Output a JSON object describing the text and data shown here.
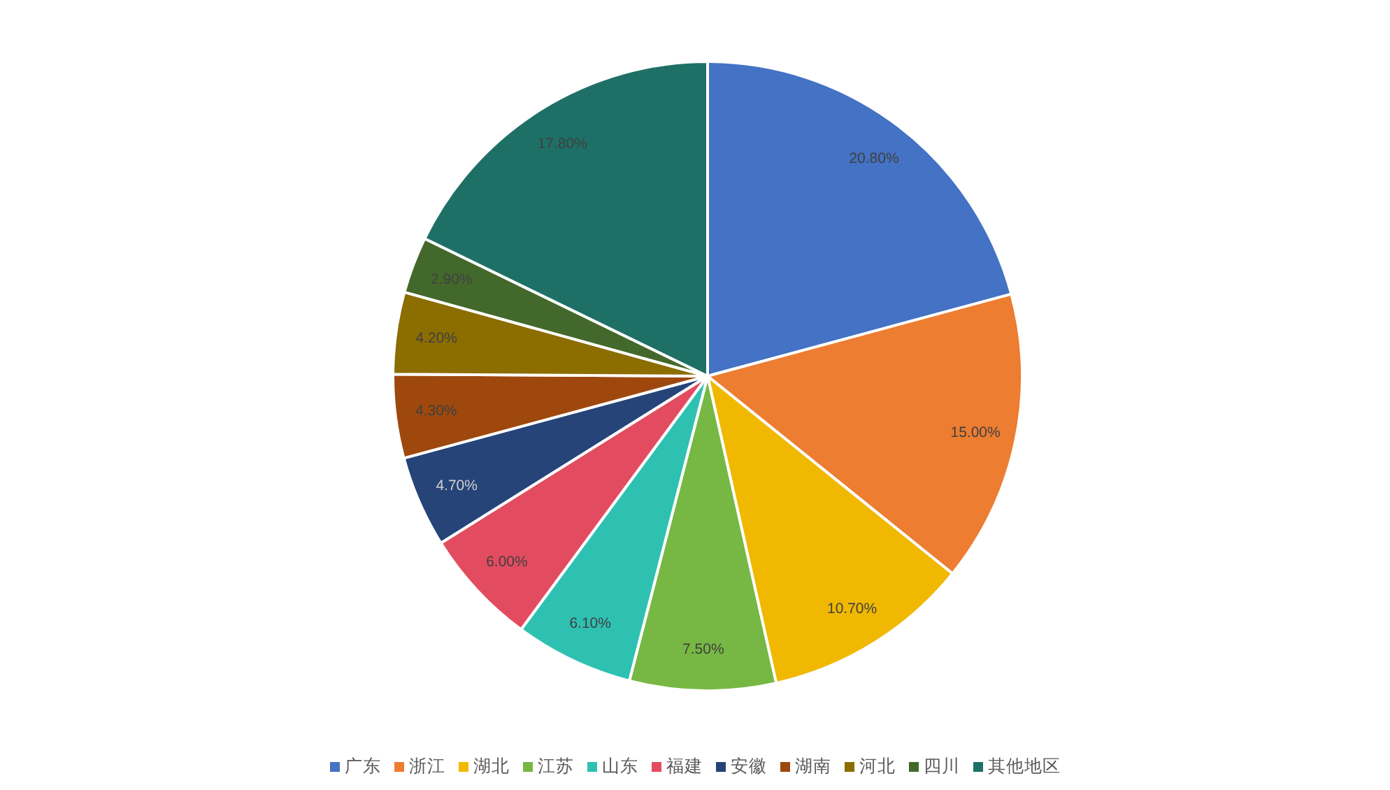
{
  "chart_data": {
    "type": "pie",
    "categories": [
      "广东",
      "浙江",
      "湖北",
      "江苏",
      "山东",
      "福建",
      "安徽",
      "湖南",
      "河北",
      "四川",
      "其他地区"
    ],
    "values": [
      20.8,
      15,
      10.7,
      7.5,
      6.1,
      6,
      4.7,
      4.3,
      4.2,
      2.9,
      17.8
    ],
    "colors": [
      "#4472c4",
      "#ed7d31",
      "#f0b800",
      "#76b843",
      "#2ec1b2",
      "#e34c60",
      "#264478",
      "#9e480e",
      "#8c6d00",
      "#43682b",
      "#1e7066"
    ],
    "value_labels": [
      "20.80%",
      "15.00%",
      "10.70%",
      "7.50%",
      "6.10%",
      "6.00%",
      "4.70%",
      "4.30%",
      "4.20%",
      "2.90%",
      "17.80%"
    ],
    "legend": "bottom"
  }
}
